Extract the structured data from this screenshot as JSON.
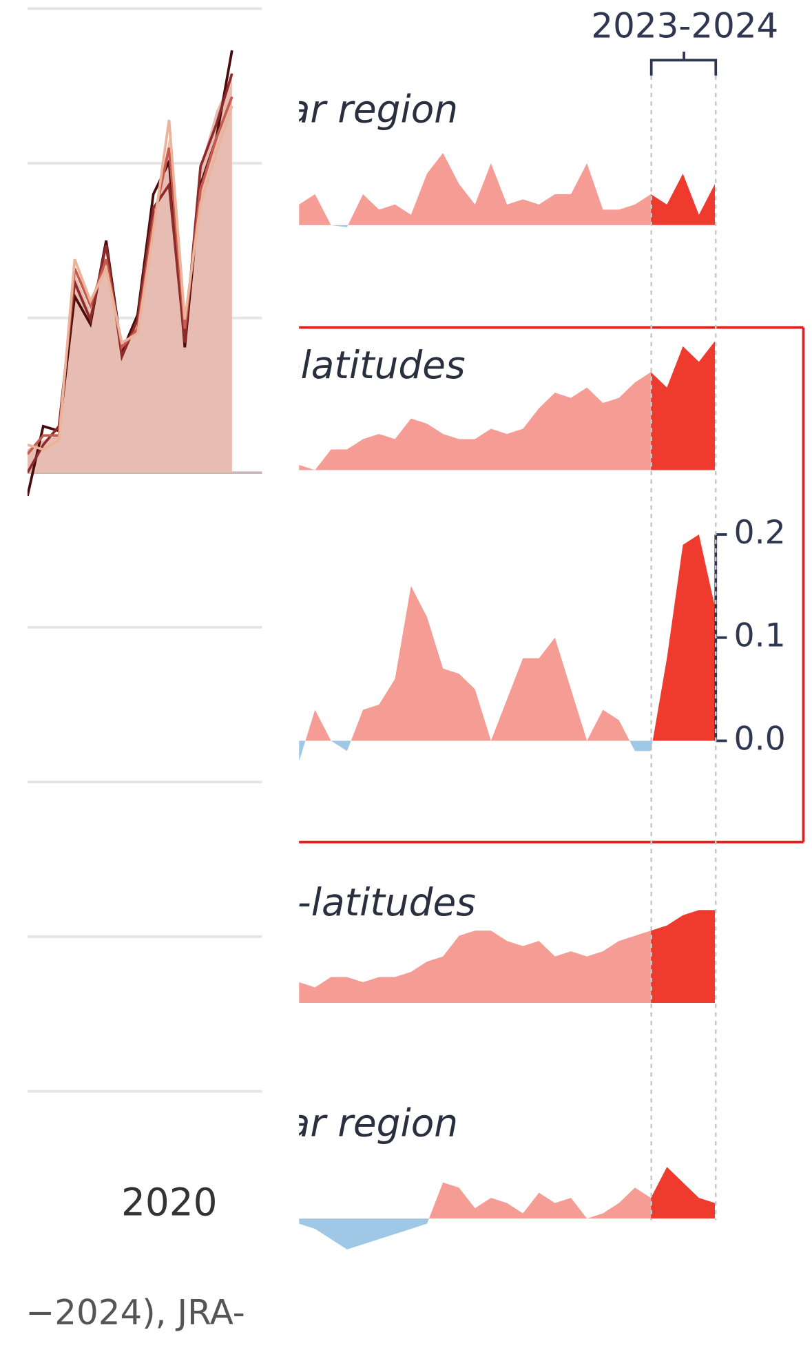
{
  "range_label": "2023-2024",
  "year_label": "2020",
  "footer": "−2024), JRA-",
  "chart_data": [
    {
      "type": "line",
      "area_color": "#e7bcb2",
      "values": [
        0.05,
        0.07,
        0.08,
        0.43,
        0.35,
        0.45,
        0.25,
        0.32,
        0.55,
        0.72,
        0.3,
        0.66,
        0.78,
        0.85
      ],
      "series": [
        {
          "color": "#4a0b0b",
          "values": [
            -0.05,
            0.1,
            0.09,
            0.38,
            0.32,
            0.5,
            0.26,
            0.34,
            0.6,
            0.67,
            0.27,
            0.62,
            0.72,
            0.91
          ]
        },
        {
          "color": "#8e2a2a",
          "values": [
            0.0,
            0.06,
            0.1,
            0.41,
            0.33,
            0.49,
            0.25,
            0.33,
            0.57,
            0.62,
            0.28,
            0.66,
            0.75,
            0.86
          ]
        },
        {
          "color": "#c65a4f",
          "values": [
            0.04,
            0.08,
            0.08,
            0.44,
            0.36,
            0.46,
            0.27,
            0.31,
            0.54,
            0.7,
            0.31,
            0.61,
            0.72,
            0.81
          ]
        },
        {
          "color": "#eab39a",
          "values": [
            0.06,
            0.05,
            0.07,
            0.46,
            0.37,
            0.44,
            0.28,
            0.3,
            0.52,
            0.76,
            0.33,
            0.58,
            0.69,
            0.79
          ]
        }
      ]
    },
    {
      "type": "area",
      "title": "ar region",
      "highlight_from": 22,
      "values": [
        0.02,
        0.03,
        0.0,
        -0.002,
        0.03,
        0.015,
        0.02,
        0.01,
        0.05,
        0.07,
        0.04,
        0.02,
        0.06,
        0.02,
        0.025,
        0.02,
        0.03,
        0.03,
        0.06,
        0.015,
        0.015,
        0.02,
        0.03,
        0.02,
        0.05,
        0.01,
        0.04
      ]
    },
    {
      "type": "area",
      "title": "-latitudes",
      "highlight_from": 22,
      "values": [
        0.005,
        0.0,
        0.02,
        0.02,
        0.03,
        0.035,
        0.03,
        0.05,
        0.045,
        0.035,
        0.03,
        0.03,
        0.04,
        0.035,
        0.04,
        0.06,
        0.075,
        0.07,
        0.08,
        0.065,
        0.07,
        0.085,
        0.095,
        0.08,
        0.12,
        0.105,
        0.125
      ]
    },
    {
      "type": "area",
      "highlight_from": 22,
      "values": [
        -0.02,
        0.03,
        0.0,
        -0.01,
        0.03,
        0.035,
        0.06,
        0.15,
        0.12,
        0.07,
        0.065,
        0.05,
        0.0,
        0.04,
        0.08,
        0.08,
        0.1,
        0.05,
        0.0,
        0.03,
        0.02,
        -0.01,
        -0.01,
        0.08,
        0.19,
        0.2,
        0.13
      ],
      "yticks": [
        {
          "value": 0,
          "label": "0.0"
        },
        {
          "value": 0.1,
          "label": "0.1"
        },
        {
          "value": 0.2,
          "label": "0.2"
        }
      ]
    },
    {
      "type": "area",
      "title": "l-latitudes",
      "highlight_from": 22,
      "values": [
        0.02,
        0.015,
        0.025,
        0.025,
        0.02,
        0.025,
        0.025,
        0.03,
        0.04,
        0.045,
        0.065,
        0.07,
        0.07,
        0.06,
        0.055,
        0.06,
        0.045,
        0.05,
        0.045,
        0.05,
        0.06,
        0.065,
        0.07,
        0.075,
        0.085,
        0.09,
        0.09
      ]
    },
    {
      "type": "area",
      "title": "ar region",
      "highlight_from": 22,
      "values": [
        -0.005,
        -0.01,
        -0.02,
        -0.03,
        -0.025,
        -0.02,
        -0.015,
        -0.01,
        -0.005,
        0.035,
        0.03,
        0.01,
        0.02,
        0.015,
        0.005,
        0.025,
        0.015,
        0.02,
        0.0,
        0.005,
        0.015,
        0.03,
        0.02,
        0.05,
        0.035,
        0.02,
        0.015
      ]
    }
  ]
}
